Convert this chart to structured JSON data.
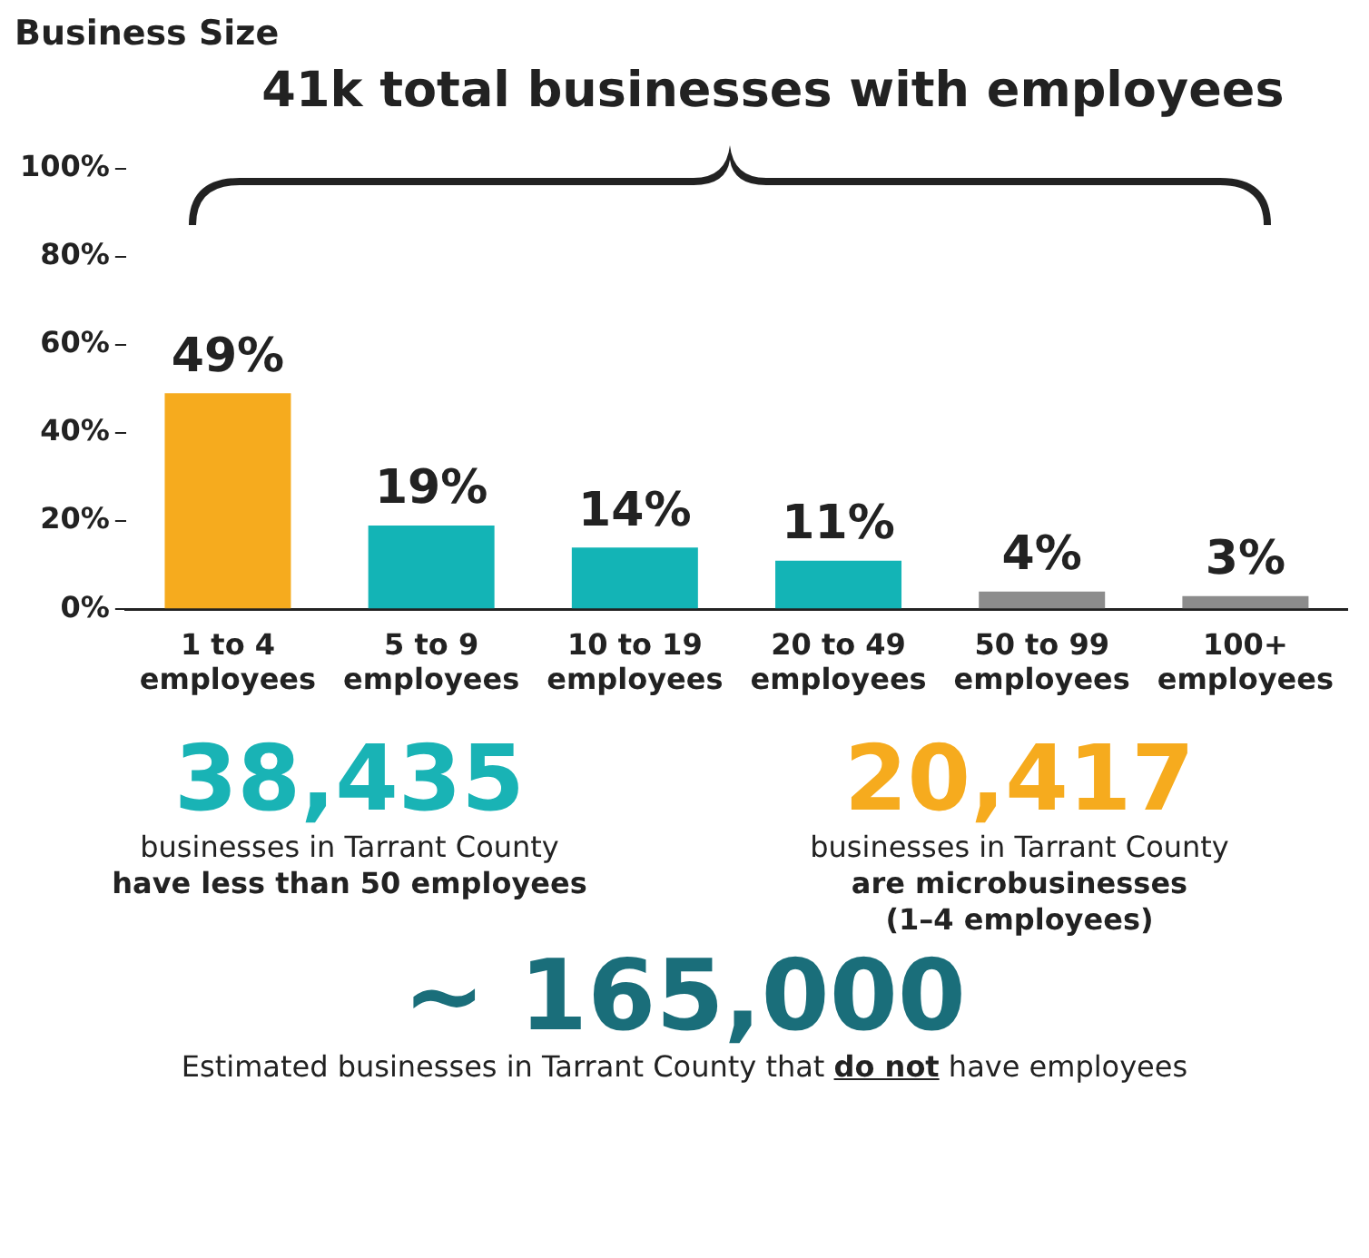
{
  "chart_data": [
    {
      "type": "bar",
      "title": "Business Size",
      "categories": [
        "1 to 4 employees",
        "5 to 9 employees",
        "10 to 19 employees",
        "20 to 49 employees",
        "50 to 99 employees",
        "100+ employees"
      ],
      "values": [
        49,
        19,
        14,
        11,
        4,
        3
      ],
      "value_labels": [
        "49%",
        "19%",
        "14%",
        "11%",
        "4%",
        "3%"
      ],
      "colors": [
        "#f6ab1e",
        "#13b4b6",
        "#13b4b6",
        "#13b4b6",
        "#8c8c8c",
        "#8c8c8c"
      ],
      "ylim": [
        0,
        100
      ],
      "yticks": [
        {
          "value": 0,
          "label": "0%"
        },
        {
          "value": 20,
          "label": "20%"
        },
        {
          "value": 40,
          "label": "40%"
        },
        {
          "value": 60,
          "label": "60%"
        },
        {
          "value": 80,
          "label": "80%"
        },
        {
          "value": 100,
          "label": "100%"
        }
      ],
      "annotations": [
        "41k total businesses with employees"
      ]
    },
    {
      "type": "other",
      "annotations": [
        "38,435",
        "businesses in Tarrant County",
        "have less than 50 employees",
        "20,417",
        "businesses in Tarrant County",
        "are microbusinesses",
        "(1–4 employees)",
        "~ 165,000",
        "Estimated businesses in Tarrant County that",
        "do not",
        "have employees"
      ]
    }
  ]
}
